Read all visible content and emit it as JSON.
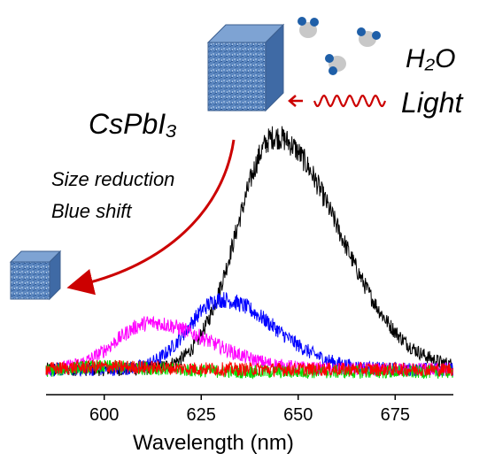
{
  "chart_data": {
    "type": "line",
    "title": "",
    "xlabel": "Wavelength  (nm)",
    "ylabel": "",
    "xlim": [
      585,
      690
    ],
    "ylim": [
      0,
      1.0
    ],
    "x_ticks": [
      "600",
      "625",
      "650",
      "675"
    ],
    "x_tick_values": [
      600,
      625,
      650,
      675
    ],
    "grid": false,
    "series": [
      {
        "color": "#000000",
        "peak_nm": 644,
        "peak_intensity": 0.95,
        "baseline": 0.05
      },
      {
        "color": "#0000ff",
        "peak_nm": 630,
        "peak_intensity": 0.32,
        "baseline": 0.05
      },
      {
        "color": "#ff00ff",
        "peak_nm": 612,
        "peak_intensity": 0.23,
        "baseline": 0.05
      },
      {
        "color": "#00dd00",
        "peak_nm": 600,
        "peak_intensity": 0.06,
        "baseline": 0.04
      },
      {
        "color": "#ff0000",
        "peak_nm": 600,
        "peak_intensity": 0.06,
        "baseline": 0.05
      }
    ]
  },
  "annotations": {
    "compound": "CsPbI₃",
    "process_line1": "Size reduction",
    "process_line2": "Blue shift",
    "water": "H₂O",
    "light": "Light"
  },
  "colors": {
    "arrow": "#cc0000",
    "cube": "#5b86bf",
    "molecule_oxygen": "#c8c8c8",
    "molecule_hydrogen": "#1f5fa8"
  },
  "icons": [
    "large-nanocrystal-cube-icon",
    "small-nanocrystal-cube-icon",
    "water-molecule-icon",
    "light-wave-icon",
    "size-reduction-arrow-icon"
  ]
}
